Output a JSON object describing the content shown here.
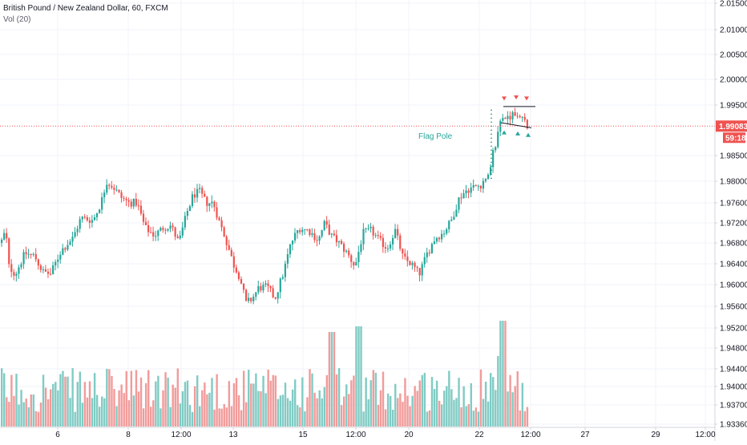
{
  "header": {
    "symbol_line": "British Pound / New Zealand Dollar, 60, FXCM",
    "volume_line": "Vol (20)"
  },
  "price_tag": {
    "price": "1.99083",
    "countdown": "59:18"
  },
  "annotation": {
    "flag_pole": "Flag Pole"
  },
  "colors": {
    "up": "#26a69a",
    "down": "#ef5350",
    "vol_up": "#80cbc4",
    "vol_down": "#f19b9a",
    "price_line": "#ef5350",
    "grid": "#f0f3fa",
    "axis": "#d1d4dc"
  },
  "chart_data": {
    "type": "candlestick",
    "title": "British Pound / New Zealand Dollar, 60, FXCM",
    "y_axis_labels": [
      "2.01500",
      "2.01000",
      "2.00500",
      "2.00000",
      "1.99500",
      "1.98500",
      "1.98000",
      "1.97600",
      "1.97200",
      "1.96800",
      "1.96400",
      "1.96000",
      "1.95600",
      "1.95200",
      "1.94800",
      "1.94400",
      "1.94000",
      "1.93700",
      "1.93360"
    ],
    "x_axis_labels": [
      "6",
      "8",
      "12:00",
      "13",
      "15",
      "12:00",
      "20",
      "22",
      "12:00",
      "27",
      "29",
      "12:00"
    ],
    "ylim": [
      1.9345,
      2.0155
    ],
    "last_price": 1.99083,
    "indicator": "Vol (20)",
    "close_path": [
      [
        0,
        1.968
      ],
      [
        6,
        1.9705
      ],
      [
        10,
        1.9635
      ],
      [
        18,
        1.962
      ],
      [
        30,
        1.966
      ],
      [
        42,
        1.9655
      ],
      [
        52,
        1.9625
      ],
      [
        62,
        1.962
      ],
      [
        75,
        1.9665
      ],
      [
        90,
        1.969
      ],
      [
        100,
        1.973
      ],
      [
        115,
        1.9725
      ],
      [
        125,
        1.976
      ],
      [
        132,
        1.98
      ],
      [
        140,
        1.979
      ],
      [
        150,
        1.977
      ],
      [
        160,
        1.976
      ],
      [
        170,
        1.976
      ],
      [
        180,
        1.971
      ],
      [
        192,
        1.9695
      ],
      [
        202,
        1.971
      ],
      [
        212,
        1.9715
      ],
      [
        222,
        1.968
      ],
      [
        232,
        1.974
      ],
      [
        240,
        1.9775
      ],
      [
        248,
        1.978
      ],
      [
        256,
        1.976
      ],
      [
        265,
        1.976
      ],
      [
        272,
        1.9725
      ],
      [
        280,
        1.969
      ],
      [
        290,
        1.964
      ],
      [
        298,
        1.9615
      ],
      [
        306,
        1.9565
      ],
      [
        314,
        1.9575
      ],
      [
        322,
        1.9595
      ],
      [
        332,
        1.9595
      ],
      [
        342,
        1.9575
      ],
      [
        352,
        1.962
      ],
      [
        362,
        1.968
      ],
      [
        372,
        1.971
      ],
      [
        384,
        1.9705
      ],
      [
        396,
        1.9685
      ],
      [
        404,
        1.972
      ],
      [
        412,
        1.9695
      ],
      [
        422,
        1.968
      ],
      [
        432,
        1.966
      ],
      [
        442,
        1.9635
      ],
      [
        452,
        1.97
      ],
      [
        462,
        1.9705
      ],
      [
        472,
        1.9685
      ],
      [
        482,
        1.967
      ],
      [
        492,
        1.9705
      ],
      [
        502,
        1.965
      ],
      [
        512,
        1.964
      ],
      [
        522,
        1.962
      ],
      [
        532,
        1.966
      ],
      [
        542,
        1.969
      ],
      [
        552,
        1.97
      ],
      [
        562,
        1.9725
      ],
      [
        572,
        1.977
      ],
      [
        582,
        1.9785
      ],
      [
        592,
        1.979
      ],
      [
        602,
        1.9795
      ],
      [
        610,
        1.981
      ],
      [
        614,
        1.9855
      ],
      [
        618,
        1.9875
      ],
      [
        623,
        1.992
      ],
      [
        628,
        1.993
      ],
      [
        633,
        1.992
      ],
      [
        638,
        1.9935
      ],
      [
        643,
        1.992
      ],
      [
        648,
        1.993
      ],
      [
        653,
        1.9915
      ],
      [
        658,
        1.9908
      ]
    ],
    "volume_series": "Vol (20)",
    "flag": {
      "pole": [
        [
          613,
          1.9805
        ],
        [
          613,
          1.9945
        ]
      ],
      "upper": [
        [
          628,
          1.9947
        ],
        [
          668,
          1.9947
        ]
      ],
      "lower": [
        [
          625,
          1.9915
        ],
        [
          663,
          1.9905
        ]
      ]
    },
    "arrows_down": [
      [
        629,
        1.9962
      ],
      [
        644,
        1.9964
      ],
      [
        657,
        1.9962
      ]
    ],
    "arrows_up": [
      [
        629,
        1.9895
      ],
      [
        646,
        1.9893
      ],
      [
        659,
        1.989
      ]
    ]
  }
}
